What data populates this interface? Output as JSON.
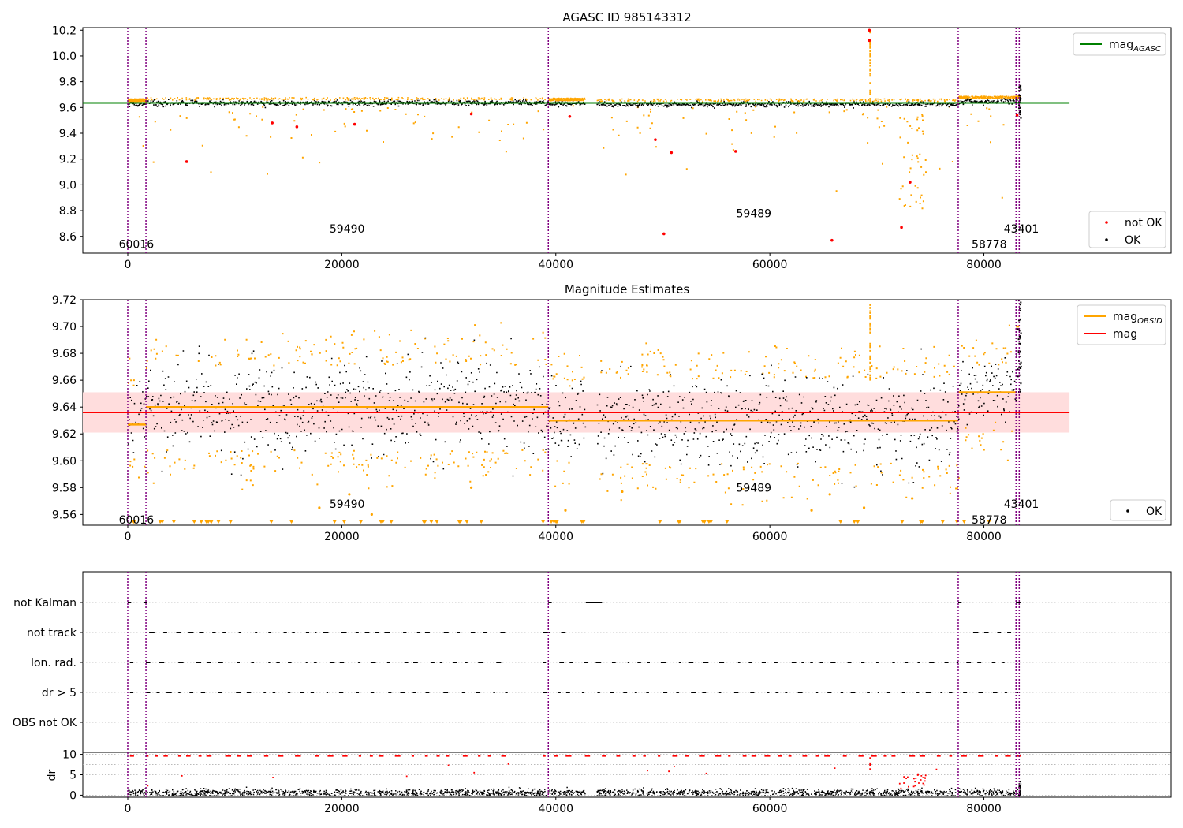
{
  "chart_data": [
    {
      "type": "scatter",
      "title": "AGASC ID 985143312",
      "xlim": [
        -4200,
        97500
      ],
      "ylim": [
        8.47,
        10.22
      ],
      "xticks": [
        0,
        20000,
        40000,
        60000,
        80000
      ],
      "xtick_labels": [
        "0",
        "20000",
        "40000",
        "60000",
        "80000"
      ],
      "yticks": [
        8.6,
        8.8,
        9.0,
        9.2,
        9.4,
        9.6,
        9.8,
        10.0,
        10.2
      ],
      "ytick_labels": [
        "8.6",
        "8.8",
        "9.0",
        "9.2",
        "9.4",
        "9.6",
        "9.8",
        "10.0",
        "10.2"
      ],
      "obsid_boundaries": [
        0,
        1700,
        39300,
        77600,
        83000,
        83300
      ],
      "obsid_labels": [
        {
          "text": "60016",
          "x": 800,
          "y": 8.54
        },
        {
          "text": "59490",
          "x": 20500,
          "y": 8.66
        },
        {
          "text": "59489",
          "x": 58500,
          "y": 8.78
        },
        {
          "text": "58778",
          "x": 80500,
          "y": 8.54
        },
        {
          "text": "43401",
          "x": 83500,
          "y": 8.66
        }
      ],
      "mag_agasc": 9.636,
      "legends": [
        {
          "location": "upper right",
          "entries": [
            {
              "label": "mag",
              "subscript": "AGASC",
              "color": "#008000",
              "marker": "line"
            }
          ]
        },
        {
          "location": "lower right",
          "entries": [
            {
              "label": "not OK",
              "color": "#ff0000",
              "marker": "dot"
            },
            {
              "label": "OK",
              "color": "#000000",
              "marker": "dot"
            }
          ]
        }
      ],
      "series": [
        {
          "name": "OK",
          "color": "#000000",
          "segments": [
            [
              0,
              1700,
              9.63
            ],
            [
              1700,
              39300,
              9.64
            ],
            [
              39300,
              42700,
              9.635
            ],
            [
              43800,
              77600,
              9.63
            ],
            [
              77600,
              83000,
              9.65
            ],
            [
              83000,
              83300,
              9.65
            ]
          ]
        },
        {
          "name": "not OK",
          "color": "#ff0000",
          "points": [
            [
              5500,
              9.18
            ],
            [
              13500,
              9.48
            ],
            [
              15800,
              9.45
            ],
            [
              21200,
              9.47
            ],
            [
              32100,
              9.55
            ],
            [
              41300,
              9.53
            ],
            [
              49300,
              9.35
            ],
            [
              50100,
              8.62
            ],
            [
              50800,
              9.25
            ],
            [
              56800,
              9.26
            ],
            [
              65800,
              8.57
            ],
            [
              69300,
              10.2
            ],
            [
              69300,
              10.12
            ],
            [
              72300,
              8.67
            ],
            [
              73100,
              9.02
            ],
            [
              83100,
              9.54
            ]
          ]
        }
      ]
    },
    {
      "type": "scatter",
      "title": "Magnitude Estimates",
      "xlim": [
        -4200,
        97500
      ],
      "ylim": [
        9.552,
        9.72
      ],
      "xticks": [
        0,
        20000,
        40000,
        60000,
        80000
      ],
      "xtick_labels": [
        "0",
        "20000",
        "40000",
        "60000",
        "80000"
      ],
      "yticks": [
        9.56,
        9.58,
        9.6,
        9.62,
        9.64,
        9.66,
        9.68,
        9.7,
        9.72
      ],
      "ytick_labels": [
        "9.56",
        "9.58",
        "9.60",
        "9.62",
        "9.64",
        "9.66",
        "9.68",
        "9.70",
        "9.72"
      ],
      "obsid_boundaries": [
        0,
        1700,
        39300,
        77600,
        83000,
        83300
      ],
      "obsid_labels": [
        {
          "text": "60016",
          "x": 800,
          "y": 9.556
        },
        {
          "text": "59490",
          "x": 20500,
          "y": 9.568
        },
        {
          "text": "59489",
          "x": 58500,
          "y": 9.58
        },
        {
          "text": "58778",
          "x": 80500,
          "y": 9.556
        },
        {
          "text": "43401",
          "x": 83500,
          "y": 9.568
        }
      ],
      "mag": 9.636,
      "mag_band": [
        9.621,
        9.651
      ],
      "mag_obsid": [
        {
          "x0": 0,
          "x1": 1700,
          "value": 9.627
        },
        {
          "x0": 1700,
          "x1": 39300,
          "value": 9.64
        },
        {
          "x0": 39300,
          "x1": 77600,
          "value": 9.63
        },
        {
          "x0": 77600,
          "x1": 83000,
          "value": 9.651
        },
        {
          "x0": 83000,
          "x1": 83300,
          "value": 9.7
        }
      ],
      "legends": [
        {
          "location": "upper right",
          "entries": [
            {
              "label": "mag",
              "subscript": "OBSID",
              "color": "#ffa500",
              "marker": "line"
            },
            {
              "label": "mag",
              "subscript": "",
              "color": "#ff0000",
              "marker": "line"
            }
          ]
        },
        {
          "location": "lower right",
          "entries": [
            {
              "label": "OK",
              "color": "#000000",
              "marker": "dot"
            }
          ]
        }
      ],
      "series": [
        {
          "name": "OK",
          "color": "#000000",
          "segments": [
            [
              0,
              1700,
              9.627,
              0.024
            ],
            [
              1700,
              39300,
              9.64,
              0.03
            ],
            [
              39300,
              42700,
              9.63,
              0.025
            ],
            [
              43800,
              77600,
              9.63,
              0.03
            ],
            [
              77600,
              83000,
              9.651,
              0.02
            ]
          ]
        },
        {
          "name": "not OK",
          "color": "#ffa500",
          "points": [
            [
              17900,
              9.565
            ],
            [
              20700,
              9.575
            ],
            [
              22800,
              9.56
            ],
            [
              32100,
              9.58
            ],
            [
              40900,
              9.563
            ],
            [
              46200,
              9.577
            ],
            [
              63900,
              9.563
            ],
            [
              65600,
              9.575
            ],
            [
              68800,
              9.565
            ],
            [
              73300,
              9.572
            ]
          ]
        }
      ]
    },
    {
      "type": "scatter",
      "title": "",
      "xlim": [
        -4200,
        97500
      ],
      "categories": [
        "not Kalman",
        "not track",
        "Ion. rad.",
        "dr > 5",
        "OBS not OK"
      ],
      "obsid_boundaries": [
        0,
        1700,
        39300,
        77600,
        83000,
        83300
      ],
      "flags": [
        {
          "label": "not Kalman",
          "ranges": [
            [
              0,
              200
            ],
            [
              1500,
              1700
            ],
            [
              39300,
              39500
            ],
            [
              42800,
              44200
            ],
            [
              77600,
              77800
            ],
            [
              83000,
              83300
            ]
          ]
        },
        {
          "label": "not track",
          "ranges": [
            [
              2000,
              35500
            ],
            [
              38800,
              39300
            ],
            [
              40500,
              40800
            ],
            [
              79000,
              83000
            ]
          ]
        },
        {
          "label": "Ion. rad.",
          "ranges": [
            [
              200,
              400
            ],
            [
              1700,
              35500
            ],
            [
              38800,
              83200
            ]
          ]
        },
        {
          "label": "dr > 5",
          "ranges": [
            [
              200,
              400
            ],
            [
              1700,
              35500
            ],
            [
              38800,
              83200
            ]
          ]
        },
        {
          "label": "OBS not OK",
          "ranges": []
        }
      ]
    },
    {
      "type": "scatter",
      "title": "",
      "ylabel": "dr",
      "xlim": [
        -4200,
        97500
      ],
      "ylim": [
        -0.5,
        10.5
      ],
      "xticks": [
        0,
        20000,
        40000,
        60000,
        80000
      ],
      "xtick_labels": [
        "0",
        "20000",
        "40000",
        "60000",
        "80000"
      ],
      "yticks": [
        0,
        5,
        10
      ],
      "ytick_labels": [
        "0",
        "5",
        "10"
      ],
      "obsid_boundaries": [
        0,
        1700,
        39300,
        77600,
        83000,
        83300
      ],
      "series": [
        {
          "name": "OK",
          "color": "#000000",
          "segments": [
            [
              0,
              42700,
              0.8
            ],
            [
              43800,
              83300,
              0.8
            ]
          ]
        },
        {
          "name": "not OK",
          "color": "#ff0000",
          "level": 9.8,
          "points": [
            [
              1800,
              2.5
            ],
            [
              5000,
              4.9
            ],
            [
              13500,
              4.5
            ],
            [
              26000,
              4.8
            ],
            [
              29900,
              7.5
            ],
            [
              32300,
              5.7
            ],
            [
              35500,
              7.8
            ],
            [
              48500,
              6.2
            ],
            [
              50500,
              6.0
            ],
            [
              51000,
              7.2
            ],
            [
              54000,
              5.5
            ],
            [
              66000,
              6.8
            ],
            [
              69300,
              7.5
            ],
            [
              72500,
              4.5
            ],
            [
              73500,
              3.5
            ],
            [
              75500,
              6.5
            ]
          ]
        }
      ]
    }
  ],
  "colors": {
    "ok": "#000000",
    "not_ok_top": "#ff0000",
    "not_ok_mid": "#ffa500",
    "mag_agasc": "#008000",
    "mag_obsid": "#ffa500",
    "mag": "#ff0000",
    "obsid_line": "#800080",
    "band": "#ffdddd",
    "grid": "#b0b0b0"
  }
}
